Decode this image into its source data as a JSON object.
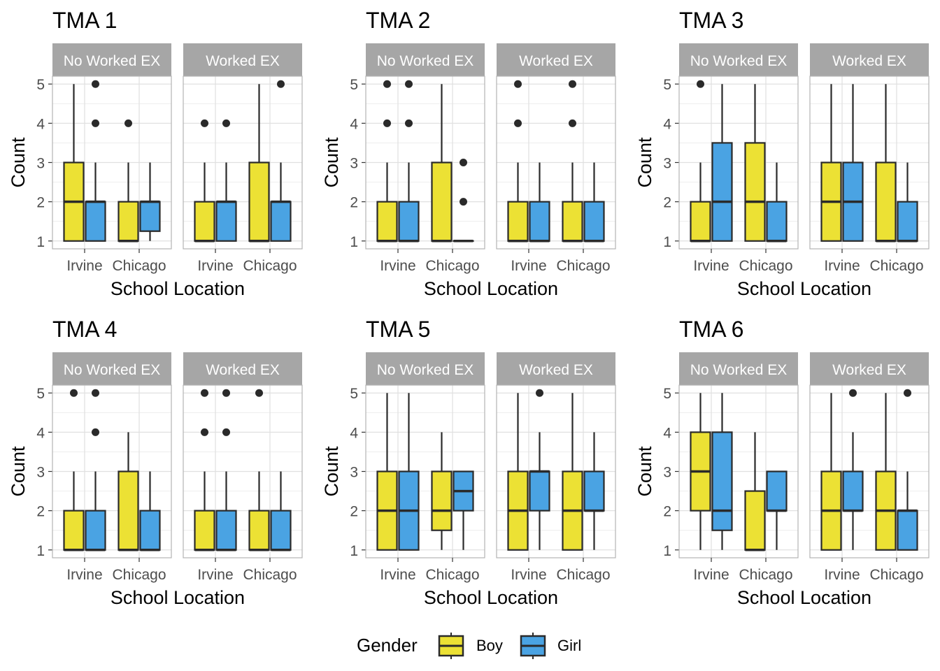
{
  "figure": {
    "legend": {
      "title": "Gender",
      "items": [
        "Boy",
        "Girl"
      ]
    }
  },
  "colors": {
    "Boy": "#ECE134",
    "Girl": "#4AA3E3",
    "strip": "#A6A6A6",
    "grid": "#E0E0E0",
    "border": "#B3B3B3",
    "outline": "#2A2A2A"
  },
  "chart_data": [
    {
      "type": "boxplot",
      "title": "TMA 1",
      "xlabel": "School Location",
      "ylabel": "Count",
      "ylim": [
        0.8,
        5.2
      ],
      "yticks": [
        1,
        2,
        3,
        4,
        5
      ],
      "categories": [
        "Irvine",
        "Chicago"
      ],
      "facets": [
        {
          "label": "No Worked EX",
          "groups": [
            {
              "category": "Irvine",
              "gender": "Boy",
              "min": 1,
              "q1": 1,
              "median": 2,
              "q3": 3,
              "max": 5,
              "outliers": []
            },
            {
              "category": "Irvine",
              "gender": "Girl",
              "min": 1,
              "q1": 1,
              "median": 2,
              "q3": 2,
              "max": 3,
              "outliers": [
                4,
                5
              ]
            },
            {
              "category": "Chicago",
              "gender": "Boy",
              "min": 1,
              "q1": 1,
              "median": 1,
              "q3": 2,
              "max": 3,
              "outliers": [
                4
              ]
            },
            {
              "category": "Chicago",
              "gender": "Girl",
              "min": 1,
              "q1": 1.25,
              "median": 2,
              "q3": 2,
              "max": 3,
              "outliers": []
            }
          ]
        },
        {
          "label": "Worked EX",
          "groups": [
            {
              "category": "Irvine",
              "gender": "Boy",
              "min": 1,
              "q1": 1,
              "median": 1,
              "q3": 2,
              "max": 3,
              "outliers": [
                4
              ]
            },
            {
              "category": "Irvine",
              "gender": "Girl",
              "min": 1,
              "q1": 1,
              "median": 2,
              "q3": 2,
              "max": 3,
              "outliers": [
                4
              ]
            },
            {
              "category": "Chicago",
              "gender": "Boy",
              "min": 1,
              "q1": 1,
              "median": 1,
              "q3": 3,
              "max": 5,
              "outliers": []
            },
            {
              "category": "Chicago",
              "gender": "Girl",
              "min": 1,
              "q1": 1,
              "median": 2,
              "q3": 2,
              "max": 3,
              "outliers": [
                5
              ]
            }
          ]
        }
      ]
    },
    {
      "type": "boxplot",
      "title": "TMA 2",
      "xlabel": "School Location",
      "ylabel": "Count",
      "ylim": [
        0.8,
        5.2
      ],
      "yticks": [
        1,
        2,
        3,
        4,
        5
      ],
      "categories": [
        "Irvine",
        "Chicago"
      ],
      "facets": [
        {
          "label": "No Worked EX",
          "groups": [
            {
              "category": "Irvine",
              "gender": "Boy",
              "min": 1,
              "q1": 1,
              "median": 1,
              "q3": 2,
              "max": 3,
              "outliers": [
                4,
                5
              ]
            },
            {
              "category": "Irvine",
              "gender": "Girl",
              "min": 1,
              "q1": 1,
              "median": 1,
              "q3": 2,
              "max": 3,
              "outliers": [
                4,
                5
              ]
            },
            {
              "category": "Chicago",
              "gender": "Boy",
              "min": 1,
              "q1": 1,
              "median": 1,
              "q3": 3,
              "max": 5,
              "outliers": []
            },
            {
              "category": "Chicago",
              "gender": "Girl",
              "min": 1,
              "q1": 1,
              "median": 1,
              "q3": 1,
              "max": 1,
              "outliers": [
                2,
                3
              ]
            }
          ]
        },
        {
          "label": "Worked EX",
          "groups": [
            {
              "category": "Irvine",
              "gender": "Boy",
              "min": 1,
              "q1": 1,
              "median": 1,
              "q3": 2,
              "max": 3,
              "outliers": [
                4,
                5
              ]
            },
            {
              "category": "Irvine",
              "gender": "Girl",
              "min": 1,
              "q1": 1,
              "median": 1,
              "q3": 2,
              "max": 3,
              "outliers": []
            },
            {
              "category": "Chicago",
              "gender": "Boy",
              "min": 1,
              "q1": 1,
              "median": 1,
              "q3": 2,
              "max": 3,
              "outliers": [
                4,
                5
              ]
            },
            {
              "category": "Chicago",
              "gender": "Girl",
              "min": 1,
              "q1": 1,
              "median": 1,
              "q3": 2,
              "max": 3,
              "outliers": []
            }
          ]
        }
      ]
    },
    {
      "type": "boxplot",
      "title": "TMA 3",
      "xlabel": "School Location",
      "ylabel": "Count",
      "ylim": [
        0.8,
        5.2
      ],
      "yticks": [
        1,
        2,
        3,
        4,
        5
      ],
      "categories": [
        "Irvine",
        "Chicago"
      ],
      "facets": [
        {
          "label": "No Worked EX",
          "groups": [
            {
              "category": "Irvine",
              "gender": "Boy",
              "min": 1,
              "q1": 1,
              "median": 1,
              "q3": 2,
              "max": 3,
              "outliers": [
                5
              ]
            },
            {
              "category": "Irvine",
              "gender": "Girl",
              "min": 1,
              "q1": 1,
              "median": 2,
              "q3": 3.5,
              "max": 5,
              "outliers": []
            },
            {
              "category": "Chicago",
              "gender": "Boy",
              "min": 1,
              "q1": 1,
              "median": 2,
              "q3": 3.5,
              "max": 5,
              "outliers": []
            },
            {
              "category": "Chicago",
              "gender": "Girl",
              "min": 1,
              "q1": 1,
              "median": 1,
              "q3": 2,
              "max": 3,
              "outliers": []
            }
          ]
        },
        {
          "label": "Worked EX",
          "groups": [
            {
              "category": "Irvine",
              "gender": "Boy",
              "min": 1,
              "q1": 1,
              "median": 2,
              "q3": 3,
              "max": 5,
              "outliers": []
            },
            {
              "category": "Irvine",
              "gender": "Girl",
              "min": 1,
              "q1": 1,
              "median": 2,
              "q3": 3,
              "max": 5,
              "outliers": []
            },
            {
              "category": "Chicago",
              "gender": "Boy",
              "min": 1,
              "q1": 1,
              "median": 1,
              "q3": 3,
              "max": 5,
              "outliers": []
            },
            {
              "category": "Chicago",
              "gender": "Girl",
              "min": 1,
              "q1": 1,
              "median": 1,
              "q3": 2,
              "max": 3,
              "outliers": []
            }
          ]
        }
      ]
    },
    {
      "type": "boxplot",
      "title": "TMA 4",
      "xlabel": "School Location",
      "ylabel": "Count",
      "ylim": [
        0.8,
        5.2
      ],
      "yticks": [
        1,
        2,
        3,
        4,
        5
      ],
      "categories": [
        "Irvine",
        "Chicago"
      ],
      "facets": [
        {
          "label": "No Worked EX",
          "groups": [
            {
              "category": "Irvine",
              "gender": "Boy",
              "min": 1,
              "q1": 1,
              "median": 1,
              "q3": 2,
              "max": 3,
              "outliers": [
                5
              ]
            },
            {
              "category": "Irvine",
              "gender": "Girl",
              "min": 1,
              "q1": 1,
              "median": 1,
              "q3": 2,
              "max": 3,
              "outliers": [
                4,
                5
              ]
            },
            {
              "category": "Chicago",
              "gender": "Boy",
              "min": 1,
              "q1": 1,
              "median": 1,
              "q3": 3,
              "max": 4,
              "outliers": []
            },
            {
              "category": "Chicago",
              "gender": "Girl",
              "min": 1,
              "q1": 1,
              "median": 1,
              "q3": 2,
              "max": 3,
              "outliers": []
            }
          ]
        },
        {
          "label": "Worked EX",
          "groups": [
            {
              "category": "Irvine",
              "gender": "Boy",
              "min": 1,
              "q1": 1,
              "median": 1,
              "q3": 2,
              "max": 3,
              "outliers": [
                4,
                5
              ]
            },
            {
              "category": "Irvine",
              "gender": "Girl",
              "min": 1,
              "q1": 1,
              "median": 1,
              "q3": 2,
              "max": 3,
              "outliers": [
                4,
                5
              ]
            },
            {
              "category": "Chicago",
              "gender": "Boy",
              "min": 1,
              "q1": 1,
              "median": 1,
              "q3": 2,
              "max": 3,
              "outliers": [
                5
              ]
            },
            {
              "category": "Chicago",
              "gender": "Girl",
              "min": 1,
              "q1": 1,
              "median": 1,
              "q3": 2,
              "max": 3,
              "outliers": []
            }
          ]
        }
      ]
    },
    {
      "type": "boxplot",
      "title": "TMA 5",
      "xlabel": "School Location",
      "ylabel": "Count",
      "ylim": [
        0.8,
        5.2
      ],
      "yticks": [
        1,
        2,
        3,
        4,
        5
      ],
      "categories": [
        "Irvine",
        "Chicago"
      ],
      "facets": [
        {
          "label": "No Worked EX",
          "groups": [
            {
              "category": "Irvine",
              "gender": "Boy",
              "min": 1,
              "q1": 1,
              "median": 2,
              "q3": 3,
              "max": 5,
              "outliers": []
            },
            {
              "category": "Irvine",
              "gender": "Girl",
              "min": 1,
              "q1": 1,
              "median": 2,
              "q3": 3,
              "max": 5,
              "outliers": []
            },
            {
              "category": "Chicago",
              "gender": "Boy",
              "min": 1,
              "q1": 1.5,
              "median": 2,
              "q3": 3,
              "max": 4,
              "outliers": []
            },
            {
              "category": "Chicago",
              "gender": "Girl",
              "min": 1,
              "q1": 2,
              "median": 2.5,
              "q3": 3,
              "max": 3,
              "outliers": []
            }
          ]
        },
        {
          "label": "Worked EX",
          "groups": [
            {
              "category": "Irvine",
              "gender": "Boy",
              "min": 1,
              "q1": 1,
              "median": 2,
              "q3": 3,
              "max": 5,
              "outliers": []
            },
            {
              "category": "Irvine",
              "gender": "Girl",
              "min": 1,
              "q1": 2,
              "median": 3,
              "q3": 3,
              "max": 4,
              "outliers": [
                5
              ]
            },
            {
              "category": "Chicago",
              "gender": "Boy",
              "min": 1,
              "q1": 1,
              "median": 2,
              "q3": 3,
              "max": 5,
              "outliers": []
            },
            {
              "category": "Chicago",
              "gender": "Girl",
              "min": 1,
              "q1": 2,
              "median": 2,
              "q3": 3,
              "max": 4,
              "outliers": []
            }
          ]
        }
      ]
    },
    {
      "type": "boxplot",
      "title": "TMA 6",
      "xlabel": "School Location",
      "ylabel": "Count",
      "ylim": [
        0.8,
        5.2
      ],
      "yticks": [
        1,
        2,
        3,
        4,
        5
      ],
      "categories": [
        "Irvine",
        "Chicago"
      ],
      "facets": [
        {
          "label": "No Worked EX",
          "groups": [
            {
              "category": "Irvine",
              "gender": "Boy",
              "min": 1,
              "q1": 2,
              "median": 3,
              "q3": 4,
              "max": 5,
              "outliers": []
            },
            {
              "category": "Irvine",
              "gender": "Girl",
              "min": 1,
              "q1": 1.5,
              "median": 2,
              "q3": 4,
              "max": 5,
              "outliers": []
            },
            {
              "category": "Chicago",
              "gender": "Boy",
              "min": 1,
              "q1": 1,
              "median": 1,
              "q3": 2.5,
              "max": 4,
              "outliers": []
            },
            {
              "category": "Chicago",
              "gender": "Girl",
              "min": 1,
              "q1": 2,
              "median": 2,
              "q3": 3,
              "max": 3,
              "outliers": []
            }
          ]
        },
        {
          "label": "Worked EX",
          "groups": [
            {
              "category": "Irvine",
              "gender": "Boy",
              "min": 1,
              "q1": 1,
              "median": 2,
              "q3": 3,
              "max": 5,
              "outliers": []
            },
            {
              "category": "Irvine",
              "gender": "Girl",
              "min": 1,
              "q1": 2,
              "median": 2,
              "q3": 3,
              "max": 4,
              "outliers": [
                5
              ]
            },
            {
              "category": "Chicago",
              "gender": "Boy",
              "min": 1,
              "q1": 1,
              "median": 2,
              "q3": 3,
              "max": 5,
              "outliers": []
            },
            {
              "category": "Chicago",
              "gender": "Girl",
              "min": 1,
              "q1": 1,
              "median": 2,
              "q3": 2,
              "max": 3,
              "outliers": [
                5
              ]
            }
          ]
        }
      ]
    }
  ]
}
